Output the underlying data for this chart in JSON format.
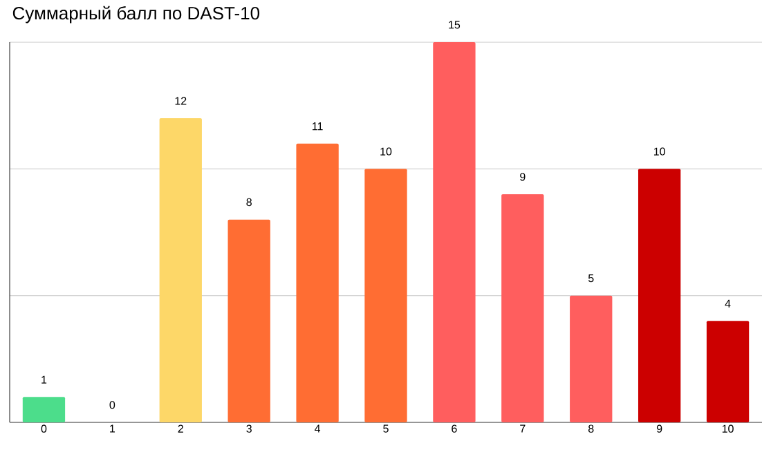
{
  "chart_data": {
    "type": "bar",
    "title": "Суммарный балл по DAST-10",
    "categories": [
      "0",
      "1",
      "2",
      "3",
      "4",
      "5",
      "6",
      "7",
      "8",
      "9",
      "10"
    ],
    "values": [
      1,
      0,
      12,
      8,
      11,
      10,
      15,
      9,
      5,
      10,
      4
    ],
    "colors": [
      "#4cdd8b",
      "#ff5e5e",
      "#fdd768",
      "#ff6d33",
      "#ff6d33",
      "#ff6d33",
      "#ff5e5e",
      "#ff5e5e",
      "#ff5e5e",
      "#cc0000",
      "#cc0000"
    ],
    "ylim": [
      0,
      15
    ],
    "yticks": [
      {
        "value": 0,
        "label": null
      },
      {
        "value": 5,
        "label": null
      },
      {
        "value": 10,
        "label": null
      },
      {
        "value": 15,
        "label": null
      }
    ],
    "grid": "y",
    "tick_labels": "x",
    "data_labels": true
  }
}
